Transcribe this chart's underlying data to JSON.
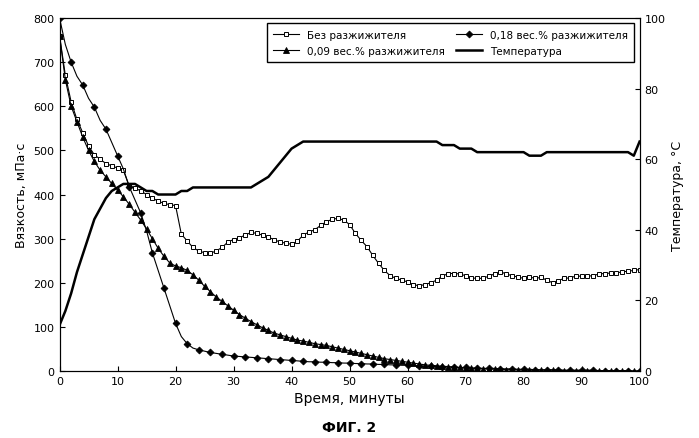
{
  "xlabel": "Время, минуты",
  "ylabel_left": "Вязкость, мПа·с",
  "ylabel_right": "Температура, °С",
  "fig_label": "ФИГ. 2",
  "xlim": [
    0,
    100
  ],
  "ylim_left": [
    0,
    800
  ],
  "ylim_right": [
    0,
    100
  ],
  "yticks_left": [
    0,
    100,
    200,
    300,
    400,
    500,
    600,
    700,
    800
  ],
  "yticks_right": [
    0,
    20,
    40,
    60,
    80,
    100
  ],
  "xticks": [
    0,
    10,
    20,
    30,
    40,
    50,
    60,
    70,
    80,
    90,
    100
  ],
  "legend_labels": [
    "Без разжижителя",
    "0,09 вес.% разжижителя",
    "0,18 вес.% разжижителя",
    "Температура"
  ],
  "background_color": "#ffffff",
  "no_thinner_x": [
    0,
    1,
    2,
    3,
    4,
    5,
    6,
    7,
    8,
    9,
    10,
    11,
    12,
    13,
    14,
    15,
    16,
    17,
    18,
    19,
    20,
    21,
    22,
    23,
    24,
    25,
    26,
    27,
    28,
    29,
    30,
    31,
    32,
    33,
    34,
    35,
    36,
    37,
    38,
    39,
    40,
    41,
    42,
    43,
    44,
    45,
    46,
    47,
    48,
    49,
    50,
    51,
    52,
    53,
    54,
    55,
    56,
    57,
    58,
    59,
    60,
    61,
    62,
    63,
    64,
    65,
    66,
    67,
    68,
    69,
    70,
    71,
    72,
    73,
    74,
    75,
    76,
    77,
    78,
    79,
    80,
    81,
    82,
    83,
    84,
    85,
    86,
    87,
    88,
    89,
    90,
    91,
    92,
    93,
    94,
    95,
    96,
    97,
    98,
    99,
    100
  ],
  "no_thinner_y": [
    760,
    670,
    610,
    570,
    540,
    510,
    490,
    480,
    470,
    465,
    460,
    455,
    420,
    415,
    408,
    400,
    392,
    385,
    380,
    377,
    375,
    310,
    295,
    280,
    272,
    268,
    267,
    272,
    280,
    292,
    298,
    302,
    308,
    314,
    312,
    308,
    303,
    298,
    292,
    290,
    287,
    294,
    308,
    315,
    320,
    330,
    338,
    344,
    346,
    342,
    332,
    312,
    296,
    282,
    262,
    244,
    228,
    216,
    210,
    206,
    202,
    196,
    193,
    196,
    200,
    206,
    215,
    221,
    221,
    220,
    216,
    211,
    210,
    210,
    215,
    220,
    225,
    220,
    216,
    213,
    210,
    213,
    210,
    212,
    206,
    200,
    205,
    210,
    211,
    215,
    215,
    215,
    216,
    220,
    221,
    222,
    222,
    225,
    226,
    228,
    230
  ],
  "thinner_009_x": [
    0,
    1,
    2,
    3,
    4,
    5,
    6,
    7,
    8,
    9,
    10,
    11,
    12,
    13,
    14,
    15,
    16,
    17,
    18,
    19,
    20,
    21,
    22,
    23,
    24,
    25,
    26,
    27,
    28,
    29,
    30,
    31,
    32,
    33,
    34,
    35,
    36,
    37,
    38,
    39,
    40,
    41,
    42,
    43,
    44,
    45,
    46,
    47,
    48,
    49,
    50,
    51,
    52,
    53,
    54,
    55,
    56,
    57,
    58,
    59,
    60,
    61,
    62,
    63,
    64,
    65,
    66,
    67,
    68,
    69,
    70,
    71,
    72,
    73,
    74,
    75,
    76,
    77,
    78,
    79,
    80,
    81,
    82,
    83,
    84,
    85,
    86,
    87,
    88,
    89,
    90,
    91,
    92,
    93,
    94,
    95,
    96,
    97,
    98,
    99,
    100
  ],
  "thinner_009_y": [
    760,
    660,
    600,
    565,
    530,
    500,
    475,
    455,
    440,
    425,
    410,
    395,
    378,
    360,
    342,
    322,
    300,
    278,
    260,
    245,
    238,
    234,
    228,
    218,
    206,
    192,
    180,
    168,
    158,
    148,
    138,
    128,
    120,
    112,
    105,
    98,
    92,
    86,
    82,
    78,
    74,
    70,
    68,
    65,
    62,
    60,
    58,
    55,
    52,
    49,
    46,
    43,
    40,
    37,
    34,
    31,
    28,
    26,
    24,
    22,
    20,
    18,
    16,
    14,
    13,
    12,
    11,
    10,
    9,
    8,
    7,
    6,
    6,
    5,
    5,
    4,
    4,
    3,
    3,
    3,
    2,
    2,
    2,
    2,
    2,
    2,
    1,
    1,
    1,
    1,
    1,
    1,
    1,
    1,
    1,
    0,
    0,
    0,
    0,
    0,
    0
  ],
  "thinner_018_x": [
    0,
    1,
    2,
    3,
    4,
    5,
    6,
    7,
    8,
    9,
    10,
    11,
    12,
    13,
    14,
    15,
    16,
    17,
    18,
    19,
    20,
    21,
    22,
    23,
    24,
    25,
    26,
    27,
    28,
    29,
    30,
    31,
    32,
    33,
    34,
    35,
    36,
    37,
    38,
    39,
    40,
    41,
    42,
    43,
    44,
    45,
    46,
    47,
    48,
    49,
    50,
    51,
    52,
    53,
    54,
    55,
    56,
    57,
    58,
    59,
    60,
    61,
    62,
    63,
    64,
    65,
    66,
    67,
    68,
    69,
    70,
    71,
    72,
    73,
    74,
    75,
    76,
    77,
    78,
    79,
    80,
    81,
    82,
    83,
    84,
    85,
    86,
    87,
    88,
    89,
    90,
    91,
    92,
    93,
    94,
    95,
    96,
    97,
    98,
    99,
    100
  ],
  "thinner_018_y": [
    800,
    740,
    700,
    668,
    648,
    618,
    598,
    568,
    548,
    518,
    488,
    458,
    418,
    388,
    358,
    318,
    268,
    228,
    188,
    148,
    108,
    78,
    62,
    52,
    48,
    45,
    42,
    40,
    38,
    36,
    34,
    33,
    32,
    31,
    30,
    29,
    28,
    27,
    26,
    25,
    24,
    23,
    22,
    21,
    21,
    20,
    20,
    19,
    19,
    18,
    18,
    17,
    17,
    16,
    16,
    15,
    15,
    14,
    14,
    13,
    13,
    12,
    12,
    11,
    11,
    10,
    10,
    9,
    9,
    8,
    8,
    7,
    7,
    6,
    6,
    6,
    5,
    5,
    5,
    4,
    4,
    4,
    3,
    3,
    3,
    3,
    3,
    2,
    2,
    2,
    2,
    2,
    2,
    1,
    1,
    1,
    1,
    1,
    1,
    0,
    0
  ],
  "temp_x": [
    0,
    1,
    2,
    3,
    4,
    5,
    6,
    7,
    8,
    9,
    10,
    11,
    12,
    13,
    14,
    15,
    16,
    17,
    18,
    19,
    20,
    21,
    22,
    23,
    24,
    25,
    26,
    27,
    28,
    29,
    30,
    31,
    32,
    33,
    34,
    35,
    36,
    37,
    38,
    39,
    40,
    41,
    42,
    43,
    44,
    45,
    46,
    47,
    48,
    49,
    50,
    51,
    52,
    53,
    54,
    55,
    56,
    57,
    58,
    59,
    60,
    61,
    62,
    63,
    64,
    65,
    66,
    67,
    68,
    69,
    70,
    71,
    72,
    73,
    74,
    75,
    76,
    77,
    78,
    79,
    80,
    81,
    82,
    83,
    84,
    85,
    86,
    87,
    88,
    89,
    90,
    91,
    92,
    93,
    94,
    95,
    96,
    97,
    98,
    99,
    100
  ],
  "temp_y": [
    13,
    17,
    22,
    28,
    33,
    38,
    43,
    46,
    49,
    51,
    52,
    53,
    53,
    53,
    52,
    51,
    51,
    50,
    50,
    50,
    50,
    51,
    51,
    52,
    52,
    52,
    52,
    52,
    52,
    52,
    52,
    52,
    52,
    52,
    53,
    54,
    55,
    57,
    59,
    61,
    63,
    64,
    65,
    65,
    65,
    65,
    65,
    65,
    65,
    65,
    65,
    65,
    65,
    65,
    65,
    65,
    65,
    65,
    65,
    65,
    65,
    65,
    65,
    65,
    65,
    65,
    64,
    64,
    64,
    63,
    63,
    63,
    62,
    62,
    62,
    62,
    62,
    62,
    62,
    62,
    62,
    61,
    61,
    61,
    62,
    62,
    62,
    62,
    62,
    62,
    62,
    62,
    62,
    62,
    62,
    62,
    62,
    62,
    62,
    61,
    65
  ]
}
